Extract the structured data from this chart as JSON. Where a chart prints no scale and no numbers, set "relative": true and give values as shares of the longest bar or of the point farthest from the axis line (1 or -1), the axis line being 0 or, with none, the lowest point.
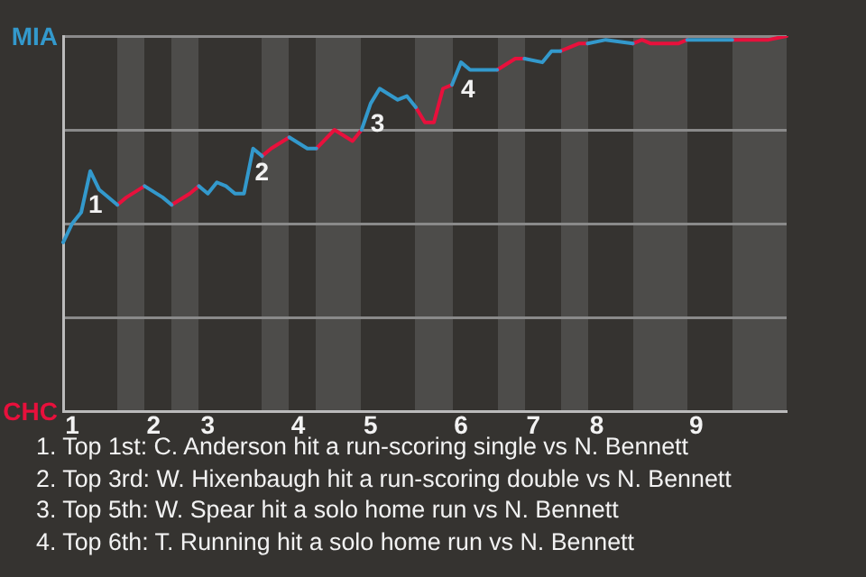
{
  "chart_data": {
    "type": "line",
    "relative": true,
    "categories": [
      null,
      "1",
      null,
      null,
      null,
      null,
      null,
      null,
      null,
      null,
      "2",
      null,
      null,
      null,
      null,
      null,
      "3",
      null,
      null,
      null,
      null,
      null,
      null,
      null,
      null,
      null,
      "4",
      null,
      null,
      null,
      null,
      null,
      null,
      null,
      "5",
      null,
      null,
      null,
      null,
      null,
      null,
      null,
      null,
      null,
      "6",
      null,
      null,
      null,
      null,
      null,
      null,
      null,
      "7",
      null,
      null,
      null,
      null,
      null,
      null,
      "8",
      null,
      null,
      null,
      null,
      null,
      null,
      null,
      null,
      null,
      null,
      "9",
      null,
      null,
      null,
      null,
      null,
      null,
      null,
      null,
      null,
      null
    ],
    "series": [
      {
        "color": "#3399cc",
        "values": [
          0.45,
          0.5,
          0.53,
          0.64,
          0.59,
          null,
          0.55,
          null,
          null,
          0.6,
          null,
          0.57,
          0.55,
          null,
          null,
          0.6,
          0.58,
          0.61,
          0.6,
          0.58,
          0.58,
          0.7,
          0.68,
          null,
          null,
          0.73,
          null,
          0.7,
          0.7,
          null,
          null,
          null,
          null,
          0.75,
          0.82,
          0.86,
          null,
          0.83,
          0.84,
          0.81,
          null,
          null,
          null,
          0.87,
          0.93,
          0.91,
          null,
          0.91,
          0.91,
          null,
          null,
          0.94,
          null,
          0.93,
          0.96,
          0.96,
          null,
          null,
          0.98,
          null,
          0.99,
          null,
          null,
          0.98,
          null,
          null,
          null,
          null,
          null,
          0.99,
          null,
          null,
          0.99,
          null,
          0.99,
          null,
          null,
          null,
          null,
          null,
          null
        ]
      },
      {
        "color": "#e8103c",
        "values": [
          null,
          null,
          null,
          null,
          null,
          null,
          0.55,
          0.57,
          null,
          0.6,
          null,
          null,
          0.55,
          null,
          0.58,
          0.6,
          null,
          null,
          null,
          null,
          null,
          null,
          0.68,
          0.7,
          null,
          0.73,
          null,
          null,
          0.7,
          null,
          0.75,
          null,
          0.72,
          0.75,
          null,
          null,
          null,
          null,
          null,
          0.81,
          0.77,
          0.77,
          0.86,
          0.87,
          null,
          null,
          null,
          null,
          0.91,
          null,
          0.94,
          0.94,
          null,
          null,
          null,
          0.96,
          null,
          0.98,
          0.98,
          null,
          null,
          null,
          null,
          0.98,
          0.99,
          0.98,
          null,
          null,
          0.98,
          0.99,
          null,
          null,
          null,
          null,
          0.99,
          null,
          null,
          null,
          0.99,
          null,
          1
        ]
      }
    ],
    "grid": "y",
    "legend": false,
    "marker": "none",
    "line_style": "solid",
    "annotations": [
      "MIA",
      "CHC",
      "1",
      "2",
      "3",
      "4",
      "1. Top 1st: C. Anderson hit a run-scoring single vs N. Bennett",
      "2. Top 3rd: W. Hixenbaugh hit a run-scoring double vs N. Bennett",
      "3. Top 5th: W. Spear hit a solo home run vs N. Bennett",
      "4. Top 6th: T. Running hit a solo home run vs N. Bennett"
    ]
  }
}
